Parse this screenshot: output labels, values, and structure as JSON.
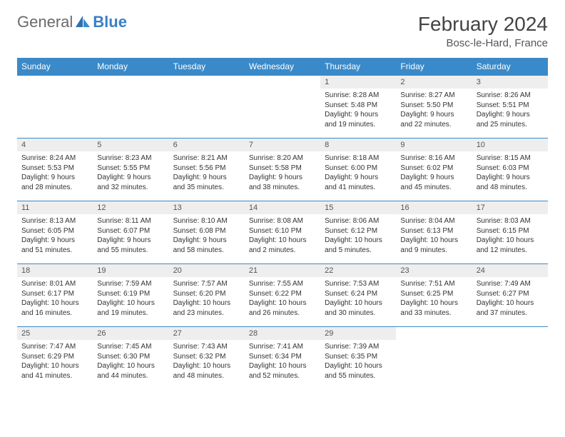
{
  "brand": {
    "part1": "General",
    "part2": "Blue"
  },
  "title": "February 2024",
  "location": "Bosc-le-Hard, France",
  "colors": {
    "header_bg": "#3a8ac9",
    "header_text": "#ffffff",
    "daynum_bg": "#eeeeee",
    "border": "#3a8ac9",
    "body_text": "#333333",
    "brand_gray": "#6a6a6a",
    "brand_blue": "#3a7fc4"
  },
  "weekdays": [
    "Sunday",
    "Monday",
    "Tuesday",
    "Wednesday",
    "Thursday",
    "Friday",
    "Saturday"
  ],
  "weeks": [
    [
      {
        "n": "",
        "sr": "",
        "ss": "",
        "dl1": "",
        "dl2": ""
      },
      {
        "n": "",
        "sr": "",
        "ss": "",
        "dl1": "",
        "dl2": ""
      },
      {
        "n": "",
        "sr": "",
        "ss": "",
        "dl1": "",
        "dl2": ""
      },
      {
        "n": "",
        "sr": "",
        "ss": "",
        "dl1": "",
        "dl2": ""
      },
      {
        "n": "1",
        "sr": "Sunrise: 8:28 AM",
        "ss": "Sunset: 5:48 PM",
        "dl1": "Daylight: 9 hours",
        "dl2": "and 19 minutes."
      },
      {
        "n": "2",
        "sr": "Sunrise: 8:27 AM",
        "ss": "Sunset: 5:50 PM",
        "dl1": "Daylight: 9 hours",
        "dl2": "and 22 minutes."
      },
      {
        "n": "3",
        "sr": "Sunrise: 8:26 AM",
        "ss": "Sunset: 5:51 PM",
        "dl1": "Daylight: 9 hours",
        "dl2": "and 25 minutes."
      }
    ],
    [
      {
        "n": "4",
        "sr": "Sunrise: 8:24 AM",
        "ss": "Sunset: 5:53 PM",
        "dl1": "Daylight: 9 hours",
        "dl2": "and 28 minutes."
      },
      {
        "n": "5",
        "sr": "Sunrise: 8:23 AM",
        "ss": "Sunset: 5:55 PM",
        "dl1": "Daylight: 9 hours",
        "dl2": "and 32 minutes."
      },
      {
        "n": "6",
        "sr": "Sunrise: 8:21 AM",
        "ss": "Sunset: 5:56 PM",
        "dl1": "Daylight: 9 hours",
        "dl2": "and 35 minutes."
      },
      {
        "n": "7",
        "sr": "Sunrise: 8:20 AM",
        "ss": "Sunset: 5:58 PM",
        "dl1": "Daylight: 9 hours",
        "dl2": "and 38 minutes."
      },
      {
        "n": "8",
        "sr": "Sunrise: 8:18 AM",
        "ss": "Sunset: 6:00 PM",
        "dl1": "Daylight: 9 hours",
        "dl2": "and 41 minutes."
      },
      {
        "n": "9",
        "sr": "Sunrise: 8:16 AM",
        "ss": "Sunset: 6:02 PM",
        "dl1": "Daylight: 9 hours",
        "dl2": "and 45 minutes."
      },
      {
        "n": "10",
        "sr": "Sunrise: 8:15 AM",
        "ss": "Sunset: 6:03 PM",
        "dl1": "Daylight: 9 hours",
        "dl2": "and 48 minutes."
      }
    ],
    [
      {
        "n": "11",
        "sr": "Sunrise: 8:13 AM",
        "ss": "Sunset: 6:05 PM",
        "dl1": "Daylight: 9 hours",
        "dl2": "and 51 minutes."
      },
      {
        "n": "12",
        "sr": "Sunrise: 8:11 AM",
        "ss": "Sunset: 6:07 PM",
        "dl1": "Daylight: 9 hours",
        "dl2": "and 55 minutes."
      },
      {
        "n": "13",
        "sr": "Sunrise: 8:10 AM",
        "ss": "Sunset: 6:08 PM",
        "dl1": "Daylight: 9 hours",
        "dl2": "and 58 minutes."
      },
      {
        "n": "14",
        "sr": "Sunrise: 8:08 AM",
        "ss": "Sunset: 6:10 PM",
        "dl1": "Daylight: 10 hours",
        "dl2": "and 2 minutes."
      },
      {
        "n": "15",
        "sr": "Sunrise: 8:06 AM",
        "ss": "Sunset: 6:12 PM",
        "dl1": "Daylight: 10 hours",
        "dl2": "and 5 minutes."
      },
      {
        "n": "16",
        "sr": "Sunrise: 8:04 AM",
        "ss": "Sunset: 6:13 PM",
        "dl1": "Daylight: 10 hours",
        "dl2": "and 9 minutes."
      },
      {
        "n": "17",
        "sr": "Sunrise: 8:03 AM",
        "ss": "Sunset: 6:15 PM",
        "dl1": "Daylight: 10 hours",
        "dl2": "and 12 minutes."
      }
    ],
    [
      {
        "n": "18",
        "sr": "Sunrise: 8:01 AM",
        "ss": "Sunset: 6:17 PM",
        "dl1": "Daylight: 10 hours",
        "dl2": "and 16 minutes."
      },
      {
        "n": "19",
        "sr": "Sunrise: 7:59 AM",
        "ss": "Sunset: 6:19 PM",
        "dl1": "Daylight: 10 hours",
        "dl2": "and 19 minutes."
      },
      {
        "n": "20",
        "sr": "Sunrise: 7:57 AM",
        "ss": "Sunset: 6:20 PM",
        "dl1": "Daylight: 10 hours",
        "dl2": "and 23 minutes."
      },
      {
        "n": "21",
        "sr": "Sunrise: 7:55 AM",
        "ss": "Sunset: 6:22 PM",
        "dl1": "Daylight: 10 hours",
        "dl2": "and 26 minutes."
      },
      {
        "n": "22",
        "sr": "Sunrise: 7:53 AM",
        "ss": "Sunset: 6:24 PM",
        "dl1": "Daylight: 10 hours",
        "dl2": "and 30 minutes."
      },
      {
        "n": "23",
        "sr": "Sunrise: 7:51 AM",
        "ss": "Sunset: 6:25 PM",
        "dl1": "Daylight: 10 hours",
        "dl2": "and 33 minutes."
      },
      {
        "n": "24",
        "sr": "Sunrise: 7:49 AM",
        "ss": "Sunset: 6:27 PM",
        "dl1": "Daylight: 10 hours",
        "dl2": "and 37 minutes."
      }
    ],
    [
      {
        "n": "25",
        "sr": "Sunrise: 7:47 AM",
        "ss": "Sunset: 6:29 PM",
        "dl1": "Daylight: 10 hours",
        "dl2": "and 41 minutes."
      },
      {
        "n": "26",
        "sr": "Sunrise: 7:45 AM",
        "ss": "Sunset: 6:30 PM",
        "dl1": "Daylight: 10 hours",
        "dl2": "and 44 minutes."
      },
      {
        "n": "27",
        "sr": "Sunrise: 7:43 AM",
        "ss": "Sunset: 6:32 PM",
        "dl1": "Daylight: 10 hours",
        "dl2": "and 48 minutes."
      },
      {
        "n": "28",
        "sr": "Sunrise: 7:41 AM",
        "ss": "Sunset: 6:34 PM",
        "dl1": "Daylight: 10 hours",
        "dl2": "and 52 minutes."
      },
      {
        "n": "29",
        "sr": "Sunrise: 7:39 AM",
        "ss": "Sunset: 6:35 PM",
        "dl1": "Daylight: 10 hours",
        "dl2": "and 55 minutes."
      },
      {
        "n": "",
        "sr": "",
        "ss": "",
        "dl1": "",
        "dl2": ""
      },
      {
        "n": "",
        "sr": "",
        "ss": "",
        "dl1": "",
        "dl2": ""
      }
    ]
  ]
}
